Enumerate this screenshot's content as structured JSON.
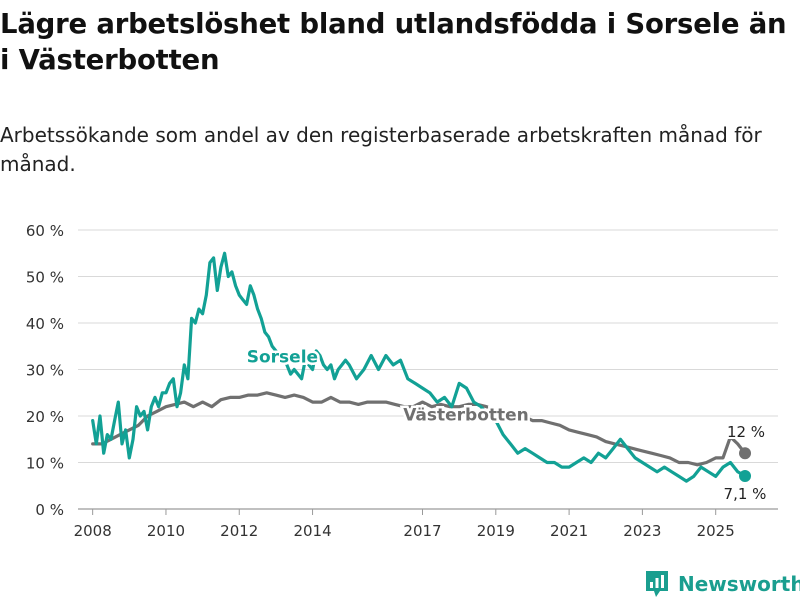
{
  "title": "Lägre arbetslöshet bland utlandsfödda i Sorsele än i Västerbotten",
  "subtitle": "Arbetssökande som andel av den registerbaserade arbetskraften månad för månad.",
  "brand": "Newsworthy",
  "colors": {
    "sorsele": "#12a195",
    "vasterbotten": "#707070",
    "grid": "#d9d9d9"
  },
  "chart_data": {
    "type": "line",
    "title": "Lägre arbetslöshet bland utlandsfödda i Sorsele än i Västerbotten",
    "xlabel": "",
    "ylabel": "",
    "xlim": [
      2007.6,
      2026.7
    ],
    "ylim": [
      0,
      60
    ],
    "x_ticks": [
      2008,
      2010,
      2012,
      2014,
      2017,
      2019,
      2021,
      2023,
      2025
    ],
    "y_ticks": [
      0,
      10,
      20,
      30,
      40,
      50,
      60
    ],
    "y_tick_labels": [
      "0 %",
      "10 %",
      "20 %",
      "30 %",
      "40 %",
      "50 %",
      "60 %"
    ],
    "series": [
      {
        "name": "Sorsele",
        "label": "Sorsele",
        "end_label": "7,1 %",
        "x": [
          2008.0,
          2008.1,
          2008.2,
          2008.3,
          2008.4,
          2008.5,
          2008.6,
          2008.7,
          2008.8,
          2008.9,
          2009.0,
          2009.1,
          2009.2,
          2009.3,
          2009.4,
          2009.5,
          2009.6,
          2009.7,
          2009.8,
          2009.9,
          2010.0,
          2010.1,
          2010.2,
          2010.3,
          2010.4,
          2010.5,
          2010.6,
          2010.7,
          2010.8,
          2010.9,
          2011.0,
          2011.1,
          2011.2,
          2011.3,
          2011.4,
          2011.5,
          2011.6,
          2011.7,
          2011.8,
          2011.9,
          2012.0,
          2012.1,
          2012.2,
          2012.3,
          2012.4,
          2012.5,
          2012.6,
          2012.7,
          2012.8,
          2012.9,
          2013.0,
          2013.1,
          2013.2,
          2013.3,
          2013.4,
          2013.5,
          2013.6,
          2013.7,
          2013.8,
          2013.9,
          2014.0,
          2014.1,
          2014.2,
          2014.3,
          2014.4,
          2014.5,
          2014.6,
          2014.7,
          2014.8,
          2014.9,
          2015.0,
          2015.2,
          2015.4,
          2015.6,
          2015.8,
          2016.0,
          2016.2,
          2016.4,
          2016.6,
          2016.8,
          2017.0,
          2017.2,
          2017.4,
          2017.6,
          2017.8,
          2018.0,
          2018.2,
          2018.4,
          2018.6,
          2018.8,
          2019.0,
          2019.2,
          2019.4,
          2019.6,
          2019.8,
          2020.0,
          2020.2,
          2020.4,
          2020.6,
          2020.8,
          2021.0,
          2021.2,
          2021.4,
          2021.6,
          2021.8,
          2022.0,
          2022.2,
          2022.4,
          2022.6,
          2022.8,
          2023.0,
          2023.2,
          2023.4,
          2023.6,
          2023.8,
          2024.0,
          2024.2,
          2024.4,
          2024.6,
          2024.8,
          2025.0,
          2025.2,
          2025.4,
          2025.6,
          2025.8
        ],
        "values": [
          19,
          14,
          20,
          12,
          16,
          15,
          19,
          23,
          14,
          17,
          11,
          15,
          22,
          20,
          21,
          17,
          22,
          24,
          22,
          25,
          25,
          27,
          28,
          22,
          25,
          31,
          28,
          41,
          40,
          43,
          42,
          46,
          53,
          54,
          47,
          52,
          55,
          50,
          51,
          48,
          46,
          45,
          44,
          48,
          46,
          43,
          41,
          38,
          37,
          35,
          34,
          33,
          33,
          31,
          29,
          30,
          29,
          28,
          32,
          31,
          30,
          34,
          33,
          31,
          30,
          31,
          28,
          30,
          31,
          32,
          31,
          28,
          30,
          33,
          30,
          33,
          31,
          32,
          28,
          27,
          26,
          25,
          23,
          24,
          22,
          27,
          26,
          23,
          22,
          20,
          19,
          16,
          14,
          12,
          13,
          12,
          11,
          10,
          10,
          9,
          9,
          10,
          11,
          10,
          12,
          11,
          13,
          15,
          13,
          11,
          10,
          9,
          8,
          9,
          8,
          7,
          6,
          7,
          9,
          8,
          7,
          9,
          10,
          8,
          7.1
        ]
      },
      {
        "name": "Västerbotten",
        "label": "Västerbotten",
        "end_label": "12 %",
        "x": [
          2008.0,
          2008.25,
          2008.5,
          2008.75,
          2009.0,
          2009.25,
          2009.5,
          2009.75,
          2010.0,
          2010.25,
          2010.5,
          2010.75,
          2011.0,
          2011.25,
          2011.5,
          2011.75,
          2012.0,
          2012.25,
          2012.5,
          2012.75,
          2013.0,
          2013.25,
          2013.5,
          2013.75,
          2014.0,
          2014.25,
          2014.5,
          2014.75,
          2015.0,
          2015.25,
          2015.5,
          2015.75,
          2016.0,
          2016.25,
          2016.5,
          2016.75,
          2017.0,
          2017.25,
          2017.5,
          2017.75,
          2018.0,
          2018.25,
          2018.5,
          2018.75,
          2019.0,
          2019.25,
          2019.5,
          2019.75,
          2020.0,
          2020.25,
          2020.5,
          2020.75,
          2021.0,
          2021.25,
          2021.5,
          2021.75,
          2022.0,
          2022.25,
          2022.5,
          2022.75,
          2023.0,
          2023.25,
          2023.5,
          2023.75,
          2024.0,
          2024.25,
          2024.5,
          2024.75,
          2025.0,
          2025.2,
          2025.4,
          2025.6,
          2025.8
        ],
        "values": [
          14,
          14,
          15,
          16,
          17,
          18,
          20,
          21,
          22,
          22.5,
          23,
          22,
          23,
          22,
          23.5,
          24,
          24,
          24.5,
          24.5,
          25,
          24.5,
          24,
          24.5,
          24,
          23,
          23,
          24,
          23,
          23,
          22.5,
          23,
          23,
          23,
          22.5,
          22,
          22,
          23,
          22,
          22.5,
          22,
          22,
          22.5,
          22.5,
          22,
          21,
          21,
          20.5,
          20,
          19,
          19,
          18.5,
          18,
          17,
          16.5,
          16,
          15.5,
          14.5,
          14,
          13.5,
          13,
          12.5,
          12,
          11.5,
          11,
          10,
          10,
          9.5,
          10,
          11,
          11,
          15.5,
          14,
          12
        ]
      }
    ]
  }
}
